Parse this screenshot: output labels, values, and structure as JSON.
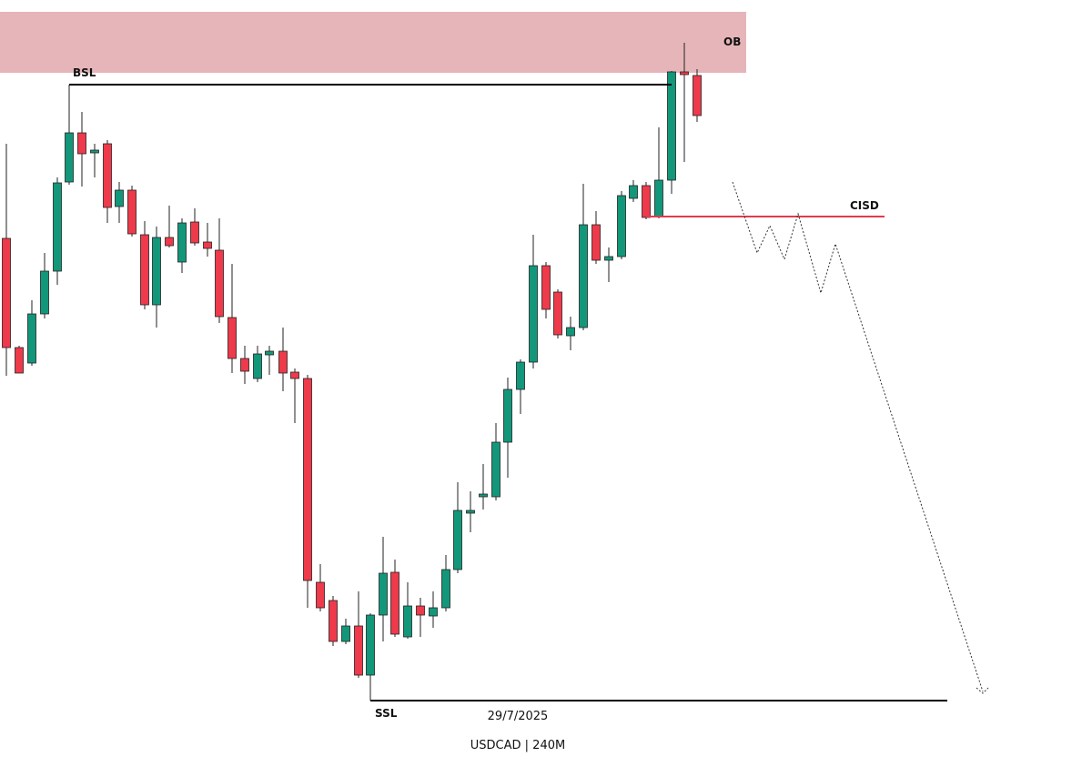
{
  "annotations": {
    "ob": "OB",
    "bsl": "BSL",
    "cisd": "CISD",
    "ssl": "SSL"
  },
  "footer": {
    "date": "29/7/2025",
    "symbol": "USDCAD | 240M"
  }
}
